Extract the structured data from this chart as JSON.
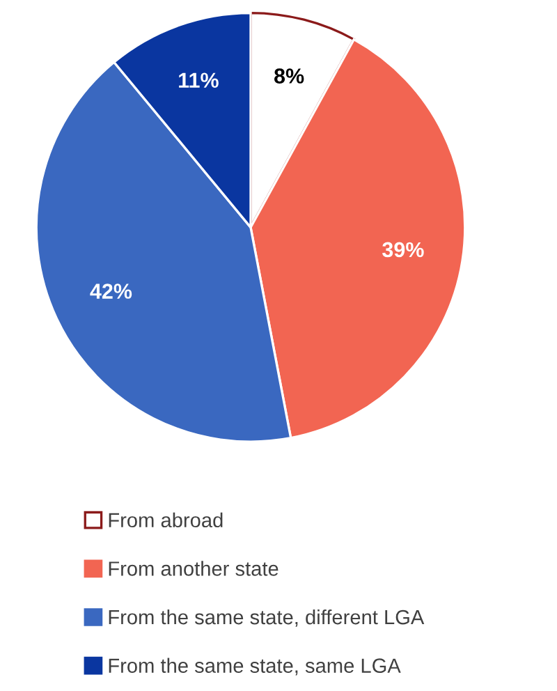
{
  "chart_data": {
    "type": "pie",
    "categories": [
      "From abroad",
      "From another state",
      "From the same state, different LGA",
      "From the same state, same LGA"
    ],
    "values": [
      8,
      39,
      42,
      11
    ],
    "colors": [
      "#ffffff",
      "#f26552",
      "#3a68c0",
      "#0a36a0"
    ],
    "value_labels": [
      "8%",
      "39%",
      "42%",
      "11%"
    ],
    "legend": "bottom"
  }
}
